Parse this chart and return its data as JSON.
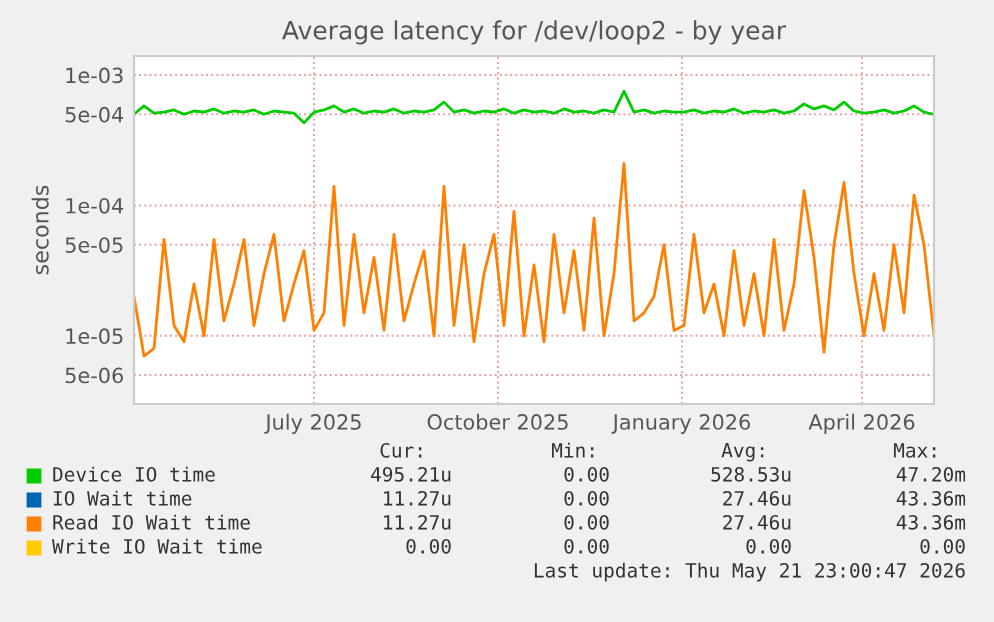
{
  "chart_data": {
    "type": "line",
    "title": "Average latency for /dev/loop2 - by year",
    "ylabel": "seconds",
    "log": true,
    "grid": true,
    "legend": "bottom",
    "xlim": [
      "2025-04-02",
      "2026-05-07"
    ],
    "xticks": [
      {
        "value": "2025-07-01",
        "label": "July 2025"
      },
      {
        "value": "2025-10-01",
        "label": "October 2025"
      },
      {
        "value": "2026-01-01",
        "label": "January 2026"
      },
      {
        "value": "2026-04-01",
        "label": "April 2026"
      }
    ],
    "ylim": [
      3e-06,
      0.0014
    ],
    "yticks": [
      {
        "value": 5e-06,
        "label": "5e-06"
      },
      {
        "value": 1e-05,
        "label": "1e-05"
      },
      {
        "value": 5e-05,
        "label": "5e-05"
      },
      {
        "value": 0.0001,
        "label": "1e-04"
      },
      {
        "value": 0.0005,
        "label": "5e-04"
      },
      {
        "value": 0.001,
        "label": "1e-03"
      }
    ],
    "x": [
      "2025-04-02",
      "2025-04-07",
      "2025-04-12",
      "2025-04-17",
      "2025-04-22",
      "2025-04-27",
      "2025-05-02",
      "2025-05-07",
      "2025-05-12",
      "2025-05-17",
      "2025-05-22",
      "2025-05-27",
      "2025-06-01",
      "2025-06-06",
      "2025-06-11",
      "2025-06-16",
      "2025-06-21",
      "2025-06-26",
      "2025-07-01",
      "2025-07-06",
      "2025-07-11",
      "2025-07-16",
      "2025-07-21",
      "2025-07-26",
      "2025-07-31",
      "2025-08-05",
      "2025-08-10",
      "2025-08-15",
      "2025-08-20",
      "2025-08-25",
      "2025-08-30",
      "2025-09-04",
      "2025-09-09",
      "2025-09-14",
      "2025-09-19",
      "2025-09-24",
      "2025-09-29",
      "2025-10-04",
      "2025-10-09",
      "2025-10-14",
      "2025-10-19",
      "2025-10-24",
      "2025-10-29",
      "2025-11-03",
      "2025-11-08",
      "2025-11-13",
      "2025-11-18",
      "2025-11-23",
      "2025-11-28",
      "2025-12-03",
      "2025-12-08",
      "2025-12-13",
      "2025-12-18",
      "2025-12-23",
      "2025-12-28",
      "2026-01-02",
      "2026-01-07",
      "2026-01-12",
      "2026-01-17",
      "2026-01-22",
      "2026-01-27",
      "2026-02-01",
      "2026-02-06",
      "2026-02-11",
      "2026-02-16",
      "2026-02-21",
      "2026-02-26",
      "2026-03-03",
      "2026-03-08",
      "2026-03-13",
      "2026-03-18",
      "2026-03-23",
      "2026-03-28",
      "2026-04-02",
      "2026-04-07",
      "2026-04-12",
      "2026-04-17",
      "2026-04-22",
      "2026-04-27",
      "2026-05-02",
      "2026-05-07"
    ],
    "series": [
      {
        "name": "Device IO time",
        "color": "#00cc00",
        "values": [
          0.0005,
          0.00058,
          0.00051,
          0.00052,
          0.00054,
          0.0005,
          0.00053,
          0.00052,
          0.00055,
          0.00051,
          0.00053,
          0.00052,
          0.00054,
          0.0005,
          0.00053,
          0.00052,
          0.00051,
          0.00043,
          0.00052,
          0.00054,
          0.00058,
          0.00052,
          0.00055,
          0.00051,
          0.00053,
          0.00052,
          0.00055,
          0.00051,
          0.00053,
          0.00052,
          0.00054,
          0.00062,
          0.00052,
          0.00054,
          0.00051,
          0.00053,
          0.00052,
          0.00055,
          0.00051,
          0.00054,
          0.00052,
          0.00053,
          0.00051,
          0.00055,
          0.00052,
          0.00053,
          0.00051,
          0.00054,
          0.00052,
          0.00075,
          0.00052,
          0.00054,
          0.00051,
          0.00053,
          0.00052,
          0.00052,
          0.00054,
          0.00051,
          0.00053,
          0.00052,
          0.00055,
          0.00051,
          0.00053,
          0.00052,
          0.00054,
          0.00051,
          0.00053,
          0.0006,
          0.00055,
          0.00058,
          0.00054,
          0.00062,
          0.00053,
          0.00051,
          0.00052,
          0.00054,
          0.00051,
          0.00053,
          0.00058,
          0.00052,
          0.0005
        ]
      },
      {
        "name": "IO Wait time",
        "color": "#0066b3",
        "values": [
          null,
          null,
          null,
          null,
          null,
          null,
          null,
          null,
          null,
          null,
          null,
          null,
          null,
          null,
          null,
          null,
          null,
          null,
          null,
          null,
          null,
          null,
          null,
          null,
          null,
          null,
          null,
          null,
          null,
          null,
          null,
          null,
          null,
          null,
          null,
          null,
          null,
          null,
          null,
          null,
          null,
          null,
          null,
          null,
          null,
          null,
          null,
          null,
          null,
          null,
          null,
          null,
          null,
          null,
          null,
          null,
          null,
          null,
          null,
          null,
          null,
          null,
          null,
          null,
          null,
          null,
          null,
          null,
          null,
          null,
          null,
          null,
          null,
          null,
          null,
          null,
          null,
          null,
          null,
          null,
          null
        ]
      },
      {
        "name": "Read IO Wait time",
        "color": "#ff8000",
        "values": [
          2e-05,
          7e-06,
          8e-06,
          5.5e-05,
          1.2e-05,
          9e-06,
          2.5e-05,
          1e-05,
          5.5e-05,
          1.3e-05,
          2.5e-05,
          5.5e-05,
          1.2e-05,
          3e-05,
          6e-05,
          1.3e-05,
          2.5e-05,
          4.5e-05,
          1.1e-05,
          1.5e-05,
          0.00014,
          1.2e-05,
          6e-05,
          1.5e-05,
          4e-05,
          1.1e-05,
          6e-05,
          1.3e-05,
          2.5e-05,
          4.5e-05,
          1e-05,
          0.00014,
          1.2e-05,
          5e-05,
          9e-06,
          3e-05,
          6e-05,
          1.2e-05,
          9e-05,
          1e-05,
          3.5e-05,
          9e-06,
          6e-05,
          1.5e-05,
          4.5e-05,
          1.1e-05,
          8e-05,
          1e-05,
          3e-05,
          0.00021,
          1.3e-05,
          1.5e-05,
          2e-05,
          5e-05,
          1.1e-05,
          1.2e-05,
          6e-05,
          1.5e-05,
          2.5e-05,
          1e-05,
          4.5e-05,
          1.2e-05,
          3e-05,
          1e-05,
          5.5e-05,
          1.1e-05,
          2.5e-05,
          0.00013,
          4e-05,
          7.5e-06,
          5e-05,
          0.00015,
          3e-05,
          1e-05,
          3e-05,
          1.1e-05,
          5e-05,
          1.5e-05,
          0.00012,
          5e-05,
          1e-05
        ]
      },
      {
        "name": "Write IO Wait time",
        "color": "#ffcc00",
        "values": [
          null,
          null,
          null,
          null,
          null,
          null,
          null,
          null,
          null,
          null,
          null,
          null,
          null,
          null,
          null,
          null,
          null,
          null,
          null,
          null,
          null,
          null,
          null,
          null,
          null,
          null,
          null,
          null,
          null,
          null,
          null,
          null,
          null,
          null,
          null,
          null,
          null,
          null,
          null,
          null,
          null,
          null,
          null,
          null,
          null,
          null,
          null,
          null,
          null,
          null,
          null,
          null,
          null,
          null,
          null,
          null,
          null,
          null,
          null,
          null,
          null,
          null,
          null,
          null,
          null,
          null,
          null,
          null,
          null,
          null,
          null,
          null,
          null,
          null,
          null,
          null,
          null,
          null,
          null,
          null,
          null
        ]
      }
    ],
    "annotations": [
      "Cur:",
      "Min:",
      "Avg:",
      "Max:",
      "495.21u",
      "0.00",
      "528.53u",
      "47.20m",
      "11.27u",
      "0.00",
      "27.46u",
      "43.36m",
      "11.27u",
      "0.00",
      "27.46u",
      "43.36m",
      "0.00",
      "0.00",
      "0.00",
      "0.00",
      "Last update: Thu May 21 23:00:47 2026"
    ]
  }
}
